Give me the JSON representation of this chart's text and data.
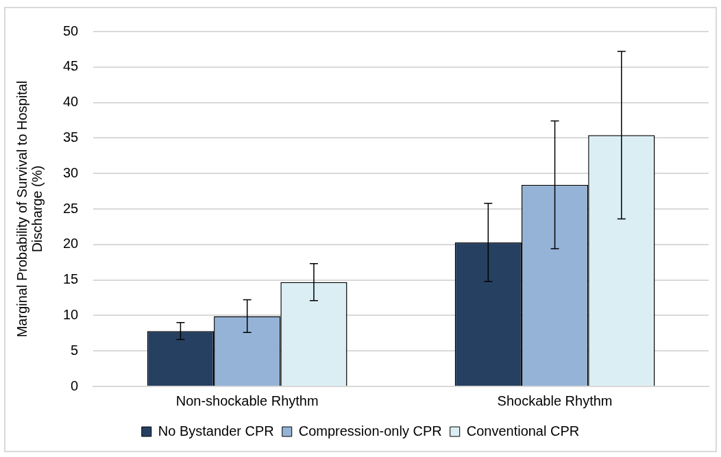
{
  "chart_data": {
    "type": "bar",
    "ylabel": "Marginal Probability of Survival to Hospital Discharge (%)",
    "categories": [
      "Non-shockable Rhythm",
      "Shockable Rhythm"
    ],
    "series": [
      {
        "name": "No Bystander CPR",
        "color": "#264061",
        "values": [
          7.8,
          20.3
        ],
        "errors": [
          [
            6.6,
            9.0
          ],
          [
            14.8,
            25.8
          ]
        ]
      },
      {
        "name": "Compression-only CPR",
        "color": "#95b3d7",
        "values": [
          9.9,
          28.4
        ],
        "errors": [
          [
            7.6,
            12.2
          ],
          [
            19.4,
            37.4
          ]
        ]
      },
      {
        "name": "Conventional CPR",
        "color": "#dbeef4",
        "values": [
          14.7,
          35.4
        ],
        "errors": [
          [
            12.1,
            17.3
          ],
          [
            23.6,
            47.2
          ]
        ]
      }
    ],
    "ylim": [
      0,
      50
    ],
    "yticks": [
      0,
      5,
      10,
      15,
      20,
      25,
      30,
      35,
      40,
      45,
      50
    ],
    "grid": "y",
    "legend": "bottom"
  }
}
